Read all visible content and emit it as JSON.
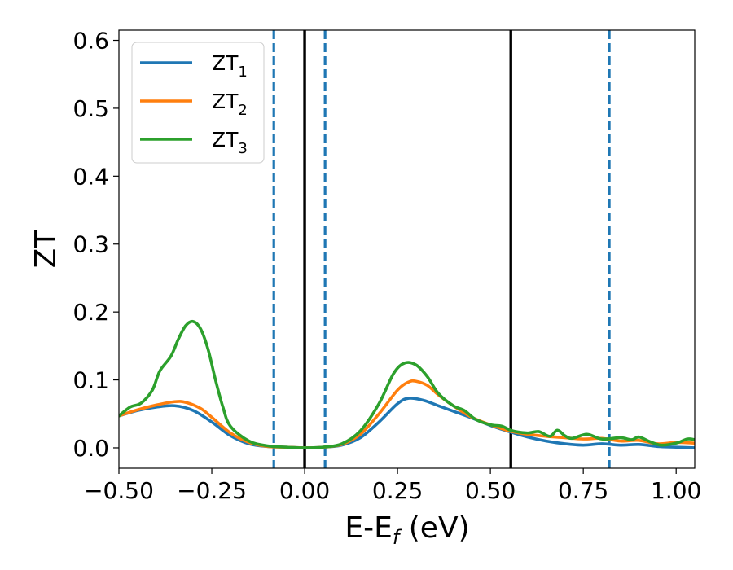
{
  "chart_data": {
    "type": "line",
    "xlabel": "E-E",
    "xlabel_sub": "f",
    "xlabel_unit": " (eV)",
    "ylabel": "ZT",
    "xlim": [
      -0.5,
      1.05
    ],
    "ylim": [
      -0.03,
      0.615
    ],
    "x_ticks": [
      -0.5,
      -0.25,
      0.0,
      0.25,
      0.5,
      0.75,
      1.0
    ],
    "x_tick_labels": [
      "−0.50",
      "−0.25",
      "0.00",
      "0.25",
      "0.50",
      "0.75",
      "1.00"
    ],
    "y_ticks": [
      0.0,
      0.1,
      0.2,
      0.3,
      0.4,
      0.5,
      0.6
    ],
    "y_tick_labels": [
      "0.0",
      "0.1",
      "0.2",
      "0.3",
      "0.4",
      "0.5",
      "0.6"
    ],
    "grid": false,
    "legend_position": "top-left",
    "series": [
      {
        "name": "ZT",
        "sub": "1",
        "color": "#1f77b4",
        "points": [
          [
            -0.5,
            0.047
          ],
          [
            -0.45,
            0.055
          ],
          [
            -0.4,
            0.06
          ],
          [
            -0.35,
            0.062
          ],
          [
            -0.3,
            0.055
          ],
          [
            -0.25,
            0.038
          ],
          [
            -0.2,
            0.018
          ],
          [
            -0.15,
            0.006
          ],
          [
            -0.1,
            0.002
          ],
          [
            -0.05,
            0.001
          ],
          [
            0.0,
            0.0
          ],
          [
            0.05,
            0.001
          ],
          [
            0.1,
            0.004
          ],
          [
            0.15,
            0.015
          ],
          [
            0.2,
            0.038
          ],
          [
            0.25,
            0.065
          ],
          [
            0.28,
            0.073
          ],
          [
            0.32,
            0.07
          ],
          [
            0.36,
            0.062
          ],
          [
            0.4,
            0.054
          ],
          [
            0.45,
            0.044
          ],
          [
            0.5,
            0.033
          ],
          [
            0.55,
            0.024
          ],
          [
            0.6,
            0.016
          ],
          [
            0.65,
            0.01
          ],
          [
            0.7,
            0.006
          ],
          [
            0.75,
            0.004
          ],
          [
            0.8,
            0.006
          ],
          [
            0.85,
            0.004
          ],
          [
            0.9,
            0.005
          ],
          [
            0.95,
            0.002
          ],
          [
            1.0,
            0.001
          ],
          [
            1.05,
            0.0
          ]
        ]
      },
      {
        "name": "ZT",
        "sub": "2",
        "color": "#ff7f0e",
        "points": [
          [
            -0.5,
            0.047
          ],
          [
            -0.45,
            0.056
          ],
          [
            -0.4,
            0.063
          ],
          [
            -0.35,
            0.068
          ],
          [
            -0.32,
            0.067
          ],
          [
            -0.28,
            0.058
          ],
          [
            -0.25,
            0.045
          ],
          [
            -0.2,
            0.022
          ],
          [
            -0.15,
            0.008
          ],
          [
            -0.1,
            0.002
          ],
          [
            -0.05,
            0.001
          ],
          [
            0.0,
            0.0
          ],
          [
            0.05,
            0.001
          ],
          [
            0.1,
            0.005
          ],
          [
            0.15,
            0.02
          ],
          [
            0.2,
            0.05
          ],
          [
            0.25,
            0.085
          ],
          [
            0.28,
            0.097
          ],
          [
            0.3,
            0.098
          ],
          [
            0.33,
            0.092
          ],
          [
            0.36,
            0.078
          ],
          [
            0.4,
            0.062
          ],
          [
            0.45,
            0.045
          ],
          [
            0.5,
            0.034
          ],
          [
            0.55,
            0.025
          ],
          [
            0.6,
            0.02
          ],
          [
            0.65,
            0.017
          ],
          [
            0.7,
            0.015
          ],
          [
            0.75,
            0.013
          ],
          [
            0.8,
            0.014
          ],
          [
            0.85,
            0.01
          ],
          [
            0.9,
            0.011
          ],
          [
            0.95,
            0.006
          ],
          [
            1.0,
            0.008
          ],
          [
            1.05,
            0.007
          ]
        ]
      },
      {
        "name": "ZT",
        "sub": "3",
        "color": "#2ca02c",
        "points": [
          [
            -0.5,
            0.047
          ],
          [
            -0.47,
            0.06
          ],
          [
            -0.44,
            0.066
          ],
          [
            -0.41,
            0.085
          ],
          [
            -0.39,
            0.113
          ],
          [
            -0.36,
            0.135
          ],
          [
            -0.34,
            0.16
          ],
          [
            -0.32,
            0.18
          ],
          [
            -0.3,
            0.186
          ],
          [
            -0.28,
            0.175
          ],
          [
            -0.26,
            0.145
          ],
          [
            -0.24,
            0.1
          ],
          [
            -0.22,
            0.06
          ],
          [
            -0.2,
            0.032
          ],
          [
            -0.15,
            0.01
          ],
          [
            -0.1,
            0.003
          ],
          [
            -0.05,
            0.001
          ],
          [
            0.0,
            0.0
          ],
          [
            0.05,
            0.001
          ],
          [
            0.1,
            0.006
          ],
          [
            0.15,
            0.025
          ],
          [
            0.2,
            0.065
          ],
          [
            0.24,
            0.11
          ],
          [
            0.27,
            0.125
          ],
          [
            0.3,
            0.122
          ],
          [
            0.33,
            0.105
          ],
          [
            0.36,
            0.08
          ],
          [
            0.4,
            0.062
          ],
          [
            0.43,
            0.055
          ],
          [
            0.46,
            0.042
          ],
          [
            0.5,
            0.034
          ],
          [
            0.53,
            0.032
          ],
          [
            0.56,
            0.025
          ],
          [
            0.6,
            0.022
          ],
          [
            0.63,
            0.024
          ],
          [
            0.66,
            0.017
          ],
          [
            0.68,
            0.026
          ],
          [
            0.7,
            0.018
          ],
          [
            0.72,
            0.014
          ],
          [
            0.76,
            0.02
          ],
          [
            0.8,
            0.013
          ],
          [
            0.85,
            0.015
          ],
          [
            0.88,
            0.012
          ],
          [
            0.9,
            0.016
          ],
          [
            0.93,
            0.009
          ],
          [
            0.96,
            0.004
          ],
          [
            1.0,
            0.007
          ],
          [
            1.03,
            0.013
          ],
          [
            1.05,
            0.012
          ]
        ]
      }
    ],
    "vlines": [
      {
        "x": -0.083,
        "style": "dashed",
        "color": "#1f77b4"
      },
      {
        "x": 0.0,
        "style": "solid",
        "color": "#000000"
      },
      {
        "x": 0.055,
        "style": "dashed",
        "color": "#1f77b4"
      },
      {
        "x": 0.555,
        "style": "solid",
        "color": "#000000"
      },
      {
        "x": 0.82,
        "style": "dashed",
        "color": "#1f77b4"
      }
    ]
  }
}
